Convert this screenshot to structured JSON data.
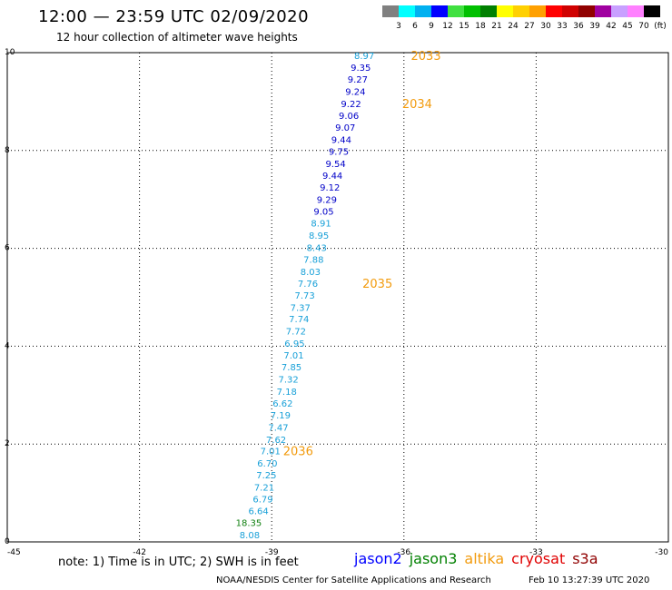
{
  "header": {
    "title": "12:00 — 23:59 UTC 02/09/2020",
    "subtitle": "12 hour collection of altimeter wave heights"
  },
  "colorbar": {
    "colors": [
      "#808080",
      "#00ffff",
      "#00b0f0",
      "#0000ff",
      "#40e040",
      "#00c000",
      "#008000",
      "#ffff00",
      "#ffd000",
      "#ffa000",
      "#ff0000",
      "#d00000",
      "#900000",
      "#a000a0",
      "#c8a0ff",
      "#ff80ff",
      "#000000"
    ],
    "labels": [
      "3",
      "6",
      "9",
      "12",
      "15",
      "18",
      "21",
      "24",
      "27",
      "30",
      "33",
      "36",
      "39",
      "42",
      "45",
      "70",
      "(ft)"
    ]
  },
  "axes": {
    "x_ticks": [
      "-45",
      "-42",
      "-39",
      "-36",
      "-33",
      "-30"
    ],
    "y_ticks": [
      "0",
      "2",
      "4",
      "6",
      "8",
      "10"
    ]
  },
  "chart_data": {
    "type": "scatter",
    "xlim": [
      -45,
      -30
    ],
    "ylim": [
      0,
      10
    ],
    "grid": true,
    "x_ticks": [
      -45,
      -42,
      -39,
      -36,
      -33,
      -30
    ],
    "y_ticks": [
      0,
      2,
      4,
      6,
      8,
      10
    ],
    "points": [
      {
        "x": -39.5,
        "y": 0.15,
        "label": "8.08",
        "color": "#18a0d8"
      },
      {
        "x": -39.52,
        "y": 0.4,
        "label": "18.35",
        "color": "#108010"
      },
      {
        "x": -39.3,
        "y": 0.64,
        "label": "6.64",
        "color": "#18a0d8"
      },
      {
        "x": -39.2,
        "y": 0.88,
        "label": "6.79",
        "color": "#18a0d8"
      },
      {
        "x": -39.17,
        "y": 1.12,
        "label": "7.21",
        "color": "#18a0d8"
      },
      {
        "x": -39.12,
        "y": 1.37,
        "label": "7.25",
        "color": "#18a0d8"
      },
      {
        "x": -39.1,
        "y": 1.61,
        "label": "6.70",
        "color": "#18a0d8"
      },
      {
        "x": -39.03,
        "y": 1.86,
        "label": "7.01",
        "color": "#18a0d8"
      },
      {
        "x": -38.9,
        "y": 2.1,
        "label": "7.62",
        "color": "#18a0d8"
      },
      {
        "x": -38.85,
        "y": 2.35,
        "label": "7.47",
        "color": "#18a0d8"
      },
      {
        "x": -38.8,
        "y": 2.6,
        "label": "7.19",
        "color": "#18a0d8"
      },
      {
        "x": -38.75,
        "y": 2.84,
        "label": "6.62",
        "color": "#18a0d8"
      },
      {
        "x": -38.66,
        "y": 3.08,
        "label": "7.18",
        "color": "#18a0d8"
      },
      {
        "x": -38.62,
        "y": 3.33,
        "label": "7.32",
        "color": "#18a0d8"
      },
      {
        "x": -38.55,
        "y": 3.58,
        "label": "7.85",
        "color": "#18a0d8"
      },
      {
        "x": -38.5,
        "y": 3.82,
        "label": "7.01",
        "color": "#18a0d8"
      },
      {
        "x": -38.48,
        "y": 4.06,
        "label": "6.95",
        "color": "#18a0d8"
      },
      {
        "x": -38.45,
        "y": 4.31,
        "label": "7.72",
        "color": "#18a0d8"
      },
      {
        "x": -38.38,
        "y": 4.56,
        "label": "7.74",
        "color": "#18a0d8"
      },
      {
        "x": -38.35,
        "y": 4.8,
        "label": "7.37",
        "color": "#18a0d8"
      },
      {
        "x": -38.25,
        "y": 5.05,
        "label": "7.73",
        "color": "#18a0d8"
      },
      {
        "x": -38.18,
        "y": 5.29,
        "label": "7.76",
        "color": "#18a0d8"
      },
      {
        "x": -38.12,
        "y": 5.53,
        "label": "8.03",
        "color": "#18a0d8"
      },
      {
        "x": -38.05,
        "y": 5.78,
        "label": "7.88",
        "color": "#18a0d8"
      },
      {
        "x": -37.98,
        "y": 6.02,
        "label": "8.43",
        "color": "#18a0d8"
      },
      {
        "x": -37.93,
        "y": 6.27,
        "label": "8.95",
        "color": "#18a0d8"
      },
      {
        "x": -37.88,
        "y": 6.52,
        "label": "8.91",
        "color": "#18a0d8"
      },
      {
        "x": -37.82,
        "y": 6.76,
        "label": "9.05",
        "color": "#0000c8"
      },
      {
        "x": -37.75,
        "y": 7.0,
        "label": "9.29",
        "color": "#0000c8"
      },
      {
        "x": -37.68,
        "y": 7.25,
        "label": "9.12",
        "color": "#0000c8"
      },
      {
        "x": -37.62,
        "y": 7.5,
        "label": "9.44",
        "color": "#0000c8"
      },
      {
        "x": -37.55,
        "y": 7.74,
        "label": "9.54",
        "color": "#0000c8"
      },
      {
        "x": -37.48,
        "y": 7.99,
        "label": "9.75",
        "color": "#0000c8"
      },
      {
        "x": -37.42,
        "y": 8.23,
        "label": "9.44",
        "color": "#0000c8"
      },
      {
        "x": -37.33,
        "y": 8.48,
        "label": "9.07",
        "color": "#0000c8"
      },
      {
        "x": -37.25,
        "y": 8.72,
        "label": "9.06",
        "color": "#0000c8"
      },
      {
        "x": -37.2,
        "y": 8.96,
        "label": "9.22",
        "color": "#0000c8"
      },
      {
        "x": -37.1,
        "y": 9.21,
        "label": "9.24",
        "color": "#0000c8"
      },
      {
        "x": -37.05,
        "y": 9.46,
        "label": "9.27",
        "color": "#0000c8"
      },
      {
        "x": -36.98,
        "y": 9.7,
        "label": "9.35",
        "color": "#0000c8"
      },
      {
        "x": -36.9,
        "y": 9.94,
        "label": "8.97",
        "color": "#18a0d8"
      }
    ],
    "time_labels": [
      {
        "x": -35.5,
        "y": 9.94,
        "label": "2033"
      },
      {
        "x": -35.7,
        "y": 8.96,
        "label": "2034"
      },
      {
        "x": -36.6,
        "y": 5.29,
        "label": "2035"
      },
      {
        "x": -38.4,
        "y": 1.86,
        "label": "2036"
      }
    ]
  },
  "footer": {
    "note": "note: 1) Time is in UTC; 2) SWH is in feet",
    "legend": [
      {
        "name": "jason2",
        "color": "#0000ff"
      },
      {
        "name": "jason3",
        "color": "#008000"
      },
      {
        "name": "altika",
        "color": "#f29b0e"
      },
      {
        "name": "cryosat",
        "color": "#e00000"
      },
      {
        "name": "s3a",
        "color": "#900000"
      }
    ],
    "credit": "NOAA/NESDIS Center for Satellite Applications and Research",
    "timestamp": "Feb 10 13:27:39 UTC 2020"
  }
}
